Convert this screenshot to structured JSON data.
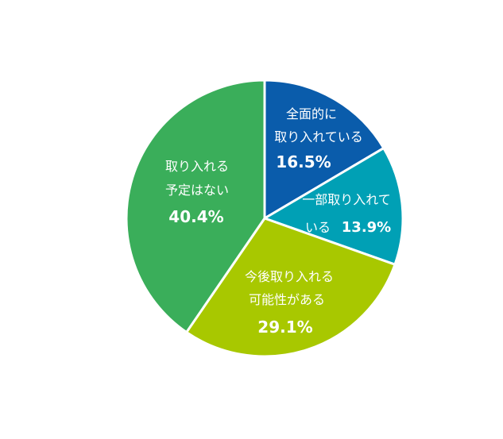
{
  "chart_data": {
    "type": "pie",
    "title": "",
    "slices": [
      {
        "label_lines": [
          "全面的に",
          "取り入れている"
        ],
        "value": 16.5,
        "value_text": "16.5%",
        "color": "#0a5cab"
      },
      {
        "label_lines": [
          "一部取り入れて",
          "いる"
        ],
        "value": 13.9,
        "value_text": "13.9%",
        "color": "#00a0b5"
      },
      {
        "label_lines": [
          "今後取り入れる",
          "可能性がある"
        ],
        "value": 29.1,
        "value_text": "29.1%",
        "color": "#a8c800"
      },
      {
        "label_lines": [
          "取り入れる",
          "予定はない"
        ],
        "value": 40.4,
        "value_text": "40.4%",
        "color": "#3aae5a"
      }
    ],
    "start_angle": "12 o'clock",
    "direction": "clockwise",
    "legend": "none",
    "slice_border_color": "#ffffff"
  }
}
